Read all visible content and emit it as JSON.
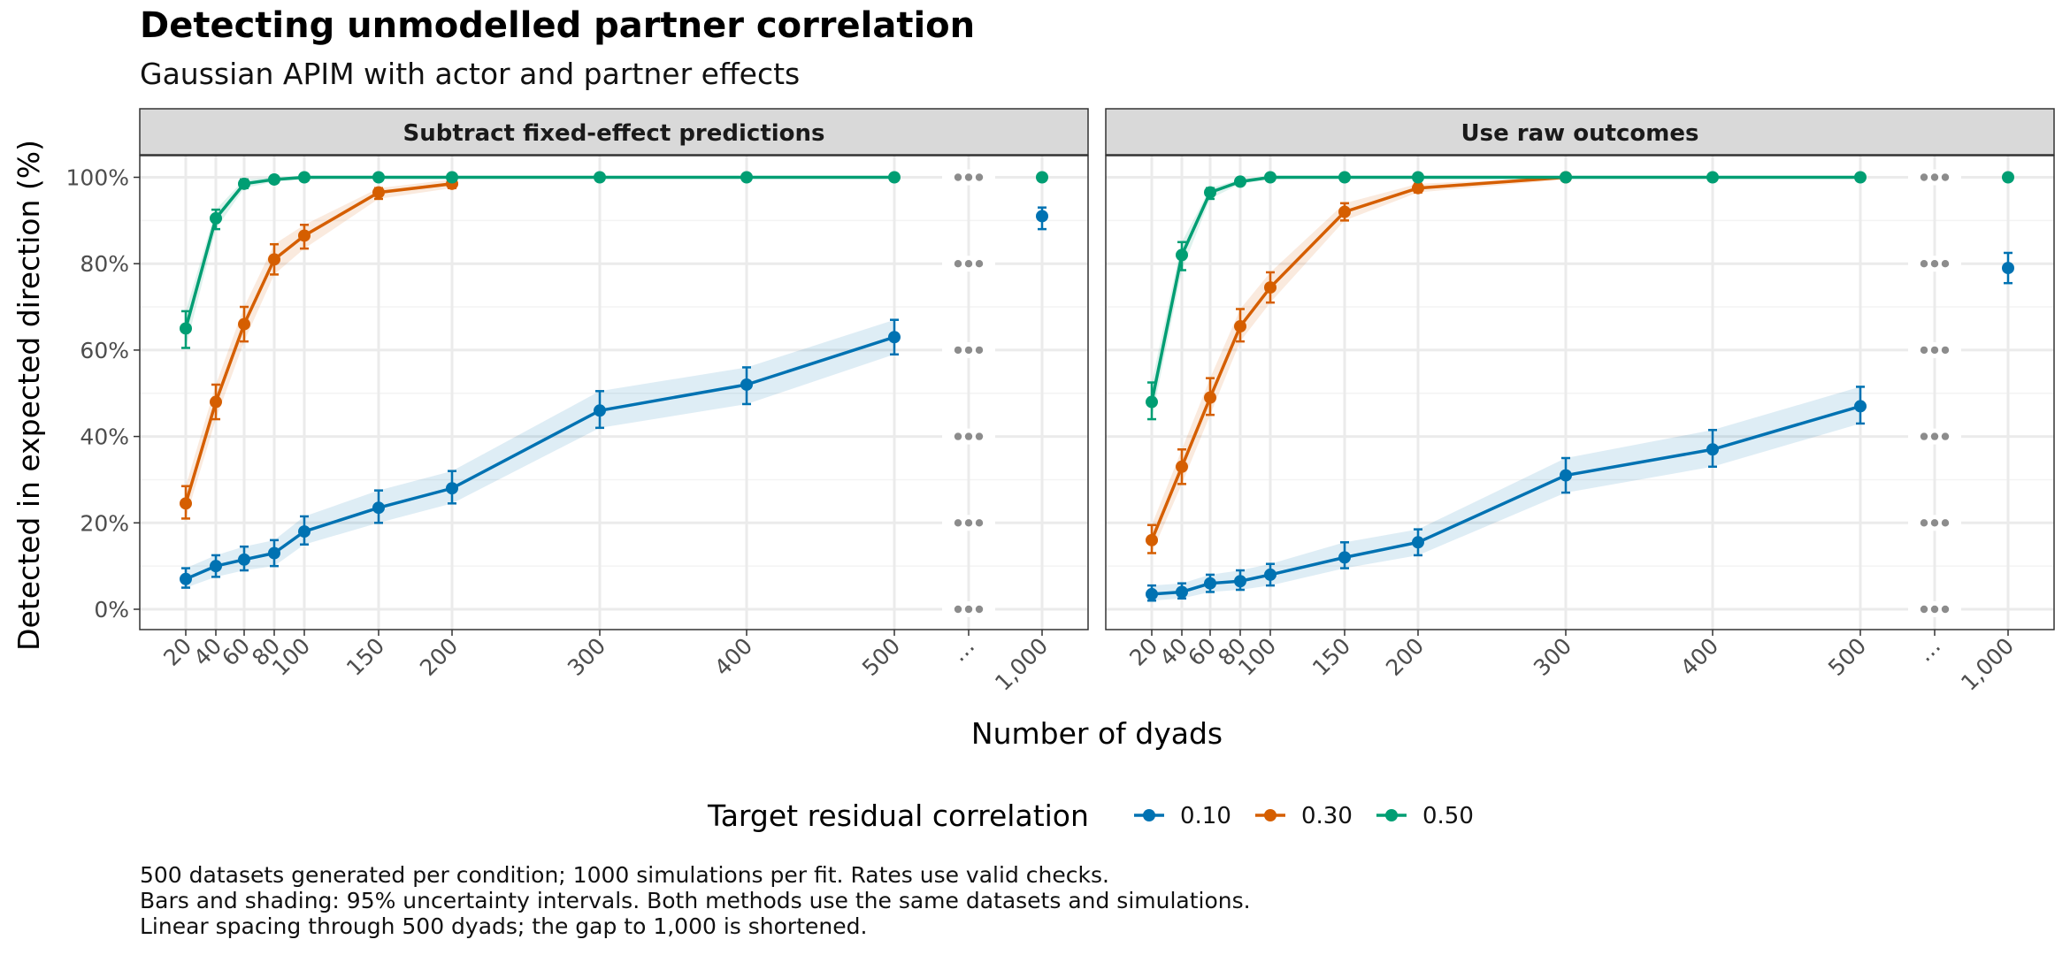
{
  "title": "Detecting unmodelled partner correlation",
  "subtitle": "Gaussian APIM with actor and partner effects",
  "caption": [
    "500 datasets generated per condition; 1000 simulations per fit. Rates use valid checks.",
    "Bars and shading: 95% uncertainty intervals. Both methods use the same datasets and simulations.",
    "Linear spacing through 500 dyads; the gap to 1,000 is shortened."
  ],
  "colors": {
    "0.10": "#0072B2",
    "0.30": "#D55E00",
    "0.50": "#009E73",
    "gap_marker": "#8c8c8c",
    "strip": "#d9d9d9",
    "grid": "#ebebeb"
  },
  "chart_data": {
    "type": "line",
    "xlabel": "Number of dyads",
    "ylabel": "Detected in expected direction (%)",
    "ylim": [
      0,
      100
    ],
    "y_ticks": [
      "0%",
      "20%",
      "40%",
      "60%",
      "80%",
      "100%"
    ],
    "x_ticks": [
      20,
      40,
      60,
      80,
      100,
      150,
      200,
      300,
      400,
      500,
      "…",
      1000
    ],
    "x_tick_labels": [
      "20",
      "40",
      "60",
      "80",
      "100",
      "150",
      "200",
      "300",
      "400",
      "500",
      "…",
      "1,000"
    ],
    "legend": {
      "title": "Target residual correlation",
      "position": "bottom",
      "entries": [
        "0.10",
        "0.30",
        "0.50"
      ]
    },
    "panels": [
      {
        "name": "Subtract fixed-effect predictions",
        "series": [
          {
            "name": "0.10",
            "x": [
              20,
              40,
              60,
              80,
              100,
              150,
              200,
              300,
              400,
              500,
              1000
            ],
            "values": [
              7,
              10,
              11.5,
              13,
              18,
              23.5,
              28,
              46,
              52,
              63,
              91
            ],
            "lower": [
              5,
              7.5,
              9,
              10,
              15,
              20,
              24.5,
              42,
              47.5,
              59,
              88
            ],
            "upper": [
              9.5,
              12.5,
              14.5,
              16,
              21.5,
              27.5,
              32,
              50.5,
              56,
              67,
              93
            ]
          },
          {
            "name": "0.30",
            "x": [
              20,
              40,
              60,
              80,
              100,
              150,
              200
            ],
            "values": [
              24.5,
              48,
              66,
              81,
              86.5,
              96.5,
              98.5
            ],
            "lower": [
              21,
              44,
              62,
              77.5,
              83.5,
              95,
              97.5
            ],
            "upper": [
              28.5,
              52,
              70,
              84.5,
              89,
              97.5,
              99.5
            ]
          },
          {
            "name": "0.50",
            "x": [
              20,
              40,
              60,
              80,
              100,
              150,
              200,
              300,
              400,
              500,
              1000
            ],
            "values": [
              65,
              90.5,
              98.5,
              99.5,
              100,
              100,
              100,
              100,
              100,
              100,
              100
            ],
            "lower": [
              60.5,
              88,
              97.5,
              99,
              99.5,
              100,
              100,
              100,
              100,
              100,
              100
            ],
            "upper": [
              69,
              92.5,
              99.5,
              100,
              100,
              100,
              100,
              100,
              100,
              100,
              100
            ]
          }
        ]
      },
      {
        "name": "Use raw outcomes",
        "series": [
          {
            "name": "0.10",
            "x": [
              20,
              40,
              60,
              80,
              100,
              150,
              200,
              300,
              400,
              500,
              1000
            ],
            "values": [
              3.5,
              4,
              6,
              6.5,
              8,
              12,
              15.5,
              31,
              37,
              47,
              79
            ],
            "lower": [
              2,
              2.5,
              4,
              4.5,
              5.5,
              9.5,
              12.5,
              27,
              33,
              43,
              75.5
            ],
            "upper": [
              5.5,
              6,
              8,
              9,
              10.5,
              15.5,
              18.5,
              35,
              41.5,
              51.5,
              82.5
            ]
          },
          {
            "name": "0.30",
            "x": [
              20,
              40,
              60,
              80,
              100,
              150,
              200,
              300
            ],
            "values": [
              16,
              33,
              49,
              65.5,
              74.5,
              92,
              97.5,
              100
            ],
            "lower": [
              13,
              29,
              45,
              62,
              71,
              90,
              96.5,
              99.5
            ],
            "upper": [
              19.5,
              37,
              53.5,
              69.5,
              78,
              94,
              98.5,
              100
            ]
          },
          {
            "name": "0.50",
            "x": [
              20,
              40,
              60,
              80,
              100,
              150,
              200,
              300,
              400,
              500,
              1000
            ],
            "values": [
              48,
              82,
              96.5,
              99,
              100,
              100,
              100,
              100,
              100,
              100,
              100
            ],
            "lower": [
              44,
              78.5,
              95,
              98.5,
              99.5,
              100,
              100,
              100,
              100,
              100,
              100
            ],
            "upper": [
              52.5,
              85,
              97.5,
              99.5,
              100,
              100,
              100,
              100,
              100,
              100,
              100
            ]
          }
        ]
      }
    ]
  }
}
